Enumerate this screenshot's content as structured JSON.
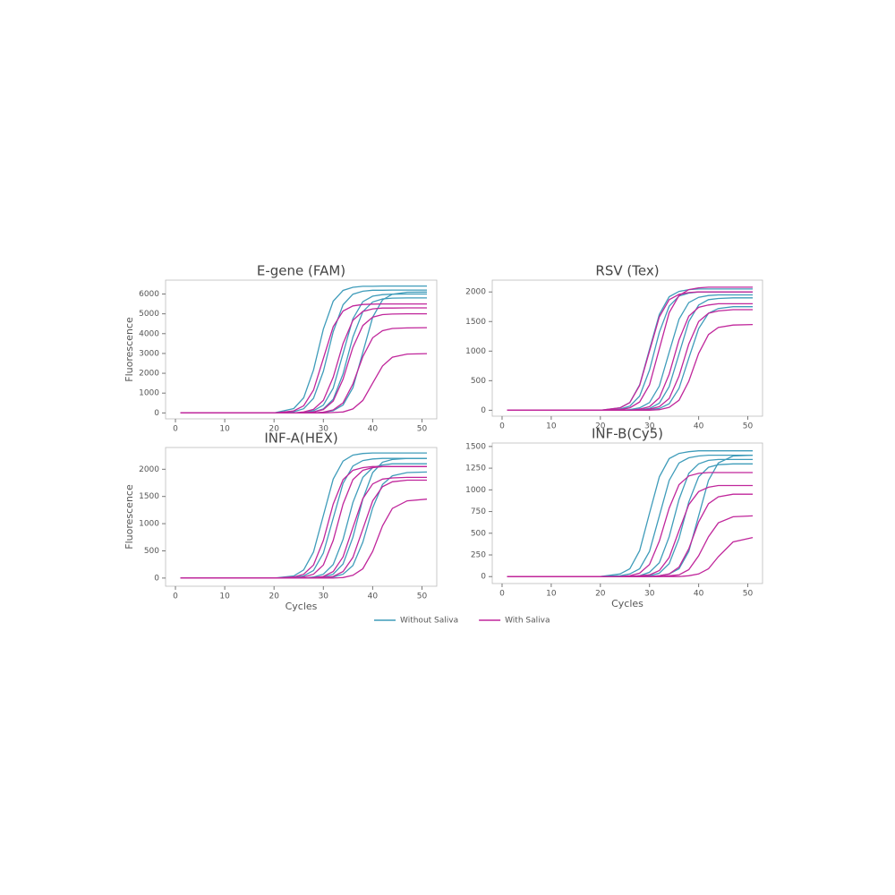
{
  "chart_data": [
    {
      "type": "line",
      "title": "E-gene (FAM)",
      "ylabel": "Fluorescence",
      "x": [
        1,
        10,
        20,
        24,
        26,
        28,
        30,
        32,
        34,
        36,
        38,
        40,
        42,
        44,
        47,
        51
      ],
      "xlim": [
        -2,
        53
      ],
      "xticks": [
        0,
        10,
        20,
        30,
        40,
        50
      ],
      "ylim": [
        -300,
        6700
      ],
      "yticks": [
        0,
        1000,
        2000,
        3000,
        4000,
        5000,
        6000
      ],
      "series": [
        {
          "name": "Without Saliva",
          "color": "#3f9cba",
          "values": [
            0,
            0,
            0,
            220,
            760,
            2170,
            4230,
            5640,
            6180,
            6340,
            6390,
            6390,
            6400,
            6400,
            6400,
            6400
          ]
        },
        {
          "name": "Without Saliva",
          "color": "#3f9cba",
          "values": [
            0,
            0,
            0,
            60,
            210,
            740,
            2100,
            4100,
            5460,
            5990,
            6140,
            6190,
            6190,
            6200,
            6200,
            6200
          ]
        },
        {
          "name": "Without Saliva",
          "color": "#3f9cba",
          "values": [
            0,
            0,
            0,
            0,
            30,
            110,
            390,
            1250,
            3000,
            4750,
            5610,
            5890,
            5970,
            5990,
            6000,
            6000
          ]
        },
        {
          "name": "Without Saliva",
          "color": "#3f9cba",
          "values": [
            0,
            0,
            0,
            0,
            0,
            50,
            200,
            690,
            1970,
            3830,
            5110,
            5600,
            5750,
            5790,
            5800,
            5800
          ]
        },
        {
          "name": "Without Saliva",
          "color": "#3f9cba",
          "values": [
            0,
            0,
            0,
            0,
            0,
            0,
            30,
            110,
            400,
            1270,
            3050,
            4830,
            5700,
            5990,
            6090,
            6100
          ]
        },
        {
          "name": "With Saliva",
          "color": "#c0269b",
          "values": [
            0,
            0,
            0,
            100,
            360,
            1150,
            2750,
            4350,
            5140,
            5400,
            5470,
            5490,
            5500,
            5500,
            5500,
            5500
          ]
        },
        {
          "name": "With Saliva",
          "color": "#c0269b",
          "values": [
            0,
            0,
            0,
            0,
            50,
            180,
            630,
            1800,
            3500,
            4670,
            5120,
            5250,
            5290,
            5290,
            5300,
            5300
          ]
        },
        {
          "name": "With Saliva",
          "color": "#c0269b",
          "values": [
            0,
            0,
            0,
            0,
            0,
            50,
            170,
            600,
            1700,
            3310,
            4410,
            4830,
            4960,
            4990,
            5000,
            5000
          ]
        },
        {
          "name": "With Saliva",
          "color": "#c0269b",
          "values": [
            0,
            0,
            0,
            0,
            0,
            0,
            40,
            150,
            510,
            1460,
            2840,
            3790,
            4150,
            4260,
            4290,
            4300
          ]
        },
        {
          "name": "With Saliva",
          "color": "#c0269b",
          "values": [
            0,
            0,
            0,
            0,
            0,
            0,
            0,
            20,
            50,
            200,
            630,
            1500,
            2370,
            2810,
            2970,
            2990
          ]
        }
      ]
    },
    {
      "type": "line",
      "title": "RSV (Tex)",
      "x": [
        1,
        10,
        20,
        24,
        26,
        28,
        30,
        32,
        34,
        36,
        38,
        40,
        42,
        44,
        47,
        51
      ],
      "xlim": [
        -2,
        53
      ],
      "xticks": [
        0,
        10,
        20,
        30,
        40,
        50
      ],
      "ylim": [
        -100,
        2200
      ],
      "yticks": [
        0,
        500,
        1000,
        1500,
        2000
      ],
      "series": [
        {
          "name": "Without Saliva",
          "color": "#3f9cba",
          "values": [
            0,
            0,
            0,
            40,
            130,
            430,
            1030,
            1620,
            1920,
            2010,
            2040,
            2050,
            2050,
            2050,
            2050,
            2050
          ]
        },
        {
          "name": "Without Saliva",
          "color": "#3f9cba",
          "values": [
            0,
            0,
            0,
            20,
            70,
            240,
            680,
            1320,
            1760,
            1930,
            1980,
            2000,
            2000,
            2000,
            2000,
            2000
          ]
        },
        {
          "name": "Without Saliva",
          "color": "#3f9cba",
          "values": [
            0,
            0,
            0,
            0,
            10,
            40,
            130,
            410,
            980,
            1540,
            1820,
            1910,
            1940,
            1950,
            1950,
            1950
          ]
        },
        {
          "name": "Without Saliva",
          "color": "#3f9cba",
          "values": [
            0,
            0,
            0,
            0,
            0,
            10,
            30,
            120,
            400,
            950,
            1500,
            1780,
            1870,
            1890,
            1900,
            1900
          ]
        },
        {
          "name": "Without Saliva",
          "color": "#3f9cba",
          "values": [
            0,
            0,
            0,
            0,
            0,
            0,
            10,
            30,
            110,
            370,
            880,
            1380,
            1640,
            1720,
            1750,
            1750
          ]
        },
        {
          "name": "With Saliva",
          "color": "#c0269b",
          "values": [
            0,
            0,
            0,
            40,
            130,
            420,
            1000,
            1580,
            1870,
            1960,
            1990,
            2000,
            2000,
            2000,
            2000,
            2000
          ]
        },
        {
          "name": "With Saliva",
          "color": "#c0269b",
          "values": [
            0,
            0,
            0,
            10,
            40,
            140,
            430,
            1040,
            1650,
            1940,
            2040,
            2070,
            2080,
            2080,
            2080,
            2080
          ]
        },
        {
          "name": "With Saliva",
          "color": "#c0269b",
          "values": [
            0,
            0,
            0,
            0,
            0,
            20,
            60,
            210,
            610,
            1190,
            1590,
            1740,
            1780,
            1800,
            1800,
            1800
          ]
        },
        {
          "name": "With Saliva",
          "color": "#c0269b",
          "values": [
            0,
            0,
            0,
            0,
            0,
            0,
            20,
            60,
            200,
            580,
            1120,
            1500,
            1640,
            1680,
            1700,
            1700
          ]
        },
        {
          "name": "With Saliva",
          "color": "#c0269b",
          "values": [
            0,
            0,
            0,
            0,
            0,
            0,
            0,
            10,
            50,
            170,
            490,
            960,
            1280,
            1400,
            1440,
            1450
          ]
        }
      ]
    },
    {
      "type": "line",
      "title": "INF-A(HEX)",
      "ylabel": "Fluorescence",
      "xlabel": "Cycles",
      "x": [
        1,
        10,
        20,
        24,
        26,
        28,
        30,
        32,
        34,
        36,
        38,
        40,
        42,
        44,
        47,
        51
      ],
      "xlim": [
        -2,
        53
      ],
      "xticks": [
        0,
        10,
        20,
        30,
        40,
        50
      ],
      "ylim": [
        -150,
        2400
      ],
      "yticks": [
        0,
        500,
        1000,
        1500,
        2000
      ],
      "series": [
        {
          "name": "Without Saliva",
          "color": "#3f9cba",
          "values": [
            0,
            0,
            0,
            40,
            150,
            480,
            1150,
            1820,
            2150,
            2260,
            2290,
            2300,
            2300,
            2300,
            2300,
            2300
          ]
        },
        {
          "name": "Without Saliva",
          "color": "#3f9cba",
          "values": [
            0,
            0,
            0,
            10,
            40,
            140,
            460,
            1100,
            1740,
            2060,
            2160,
            2190,
            2200,
            2200,
            2200,
            2200
          ]
        },
        {
          "name": "Without Saliva",
          "color": "#3f9cba",
          "values": [
            0,
            0,
            0,
            0,
            0,
            20,
            70,
            250,
            710,
            1390,
            1850,
            2030,
            2080,
            2100,
            2100,
            2100
          ]
        },
        {
          "name": "Without Saliva",
          "color": "#3f9cba",
          "values": [
            0,
            0,
            0,
            0,
            0,
            0,
            20,
            70,
            260,
            750,
            1450,
            1940,
            2130,
            2180,
            2200,
            2200
          ]
        },
        {
          "name": "Without Saliva",
          "color": "#3f9cba",
          "values": [
            0,
            0,
            0,
            0,
            0,
            0,
            0,
            20,
            70,
            230,
            660,
            1290,
            1720,
            1880,
            1940,
            1950
          ]
        },
        {
          "name": "With Saliva",
          "color": "#c0269b",
          "values": [
            0,
            0,
            0,
            20,
            70,
            240,
            690,
            1360,
            1810,
            1980,
            2030,
            2050,
            2050,
            2050,
            2050,
            2050
          ]
        },
        {
          "name": "With Saliva",
          "color": "#c0269b",
          "values": [
            0,
            0,
            0,
            0,
            20,
            70,
            240,
            690,
            1360,
            1810,
            1980,
            2030,
            2050,
            2050,
            2050,
            2050
          ]
        },
        {
          "name": "With Saliva",
          "color": "#c0269b",
          "values": [
            0,
            0,
            0,
            0,
            0,
            10,
            30,
            120,
            390,
            930,
            1460,
            1730,
            1820,
            1840,
            1850,
            1850
          ]
        },
        {
          "name": "With Saliva",
          "color": "#c0269b",
          "values": [
            0,
            0,
            0,
            0,
            0,
            0,
            10,
            30,
            120,
            380,
            900,
            1420,
            1680,
            1770,
            1800,
            1800
          ]
        },
        {
          "name": "With Saliva",
          "color": "#c0269b",
          "values": [
            0,
            0,
            0,
            0,
            0,
            0,
            0,
            0,
            10,
            50,
            170,
            490,
            960,
            1280,
            1420,
            1450
          ]
        }
      ]
    },
    {
      "type": "line",
      "title": "INF-B(Cy5)",
      "xlabel": "Cycles",
      "x": [
        1,
        10,
        20,
        24,
        26,
        28,
        30,
        32,
        34,
        36,
        38,
        40,
        42,
        44,
        47,
        51
      ],
      "xlim": [
        -2,
        53
      ],
      "xticks": [
        0,
        10,
        20,
        30,
        40,
        50
      ],
      "ylim": [
        -80,
        1540
      ],
      "yticks": [
        0,
        250,
        500,
        750,
        1000,
        1250,
        1500
      ],
      "series": [
        {
          "name": "Without Saliva",
          "color": "#3f9cba",
          "values": [
            0,
            0,
            0,
            30,
            90,
            300,
            730,
            1150,
            1360,
            1420,
            1440,
            1450,
            1450,
            1450,
            1450,
            1450
          ]
        },
        {
          "name": "Without Saliva",
          "color": "#3f9cba",
          "values": [
            0,
            0,
            0,
            10,
            30,
            90,
            290,
            700,
            1110,
            1310,
            1370,
            1390,
            1400,
            1400,
            1400,
            1400
          ]
        },
        {
          "name": "Without Saliva",
          "color": "#3f9cba",
          "values": [
            0,
            0,
            0,
            0,
            0,
            10,
            50,
            160,
            460,
            890,
            1190,
            1300,
            1340,
            1350,
            1350,
            1350
          ]
        },
        {
          "name": "Without Saliva",
          "color": "#3f9cba",
          "values": [
            0,
            0,
            0,
            0,
            0,
            0,
            10,
            40,
            150,
            440,
            860,
            1150,
            1260,
            1290,
            1300,
            1300
          ]
        },
        {
          "name": "Without Saliva",
          "color": "#3f9cba",
          "values": [
            0,
            0,
            0,
            0,
            0,
            0,
            0,
            10,
            30,
            90,
            290,
            700,
            1110,
            1310,
            1390,
            1400
          ]
        },
        {
          "name": "With Saliva",
          "color": "#c0269b",
          "values": [
            0,
            0,
            0,
            0,
            10,
            40,
            140,
            410,
            790,
            1060,
            1160,
            1190,
            1200,
            1200,
            1200,
            1200
          ]
        },
        {
          "name": "With Saliva",
          "color": "#c0269b",
          "values": [
            0,
            0,
            0,
            0,
            0,
            10,
            20,
            70,
            220,
            530,
            830,
            980,
            1030,
            1050,
            1050,
            1050
          ]
        },
        {
          "name": "With Saliva",
          "color": "#c0269b",
          "values": [
            0,
            0,
            0,
            0,
            0,
            0,
            0,
            10,
            30,
            110,
            320,
            630,
            840,
            920,
            950,
            950
          ]
        },
        {
          "name": "With Saliva",
          "color": "#c0269b",
          "values": [
            0,
            0,
            0,
            0,
            0,
            0,
            0,
            0,
            10,
            20,
            80,
            240,
            460,
            620,
            690,
            700
          ]
        },
        {
          "name": "With Saliva",
          "color": "#c0269b",
          "values": [
            0,
            0,
            0,
            0,
            0,
            0,
            0,
            0,
            0,
            0,
            10,
            30,
            90,
            230,
            400,
            450
          ]
        }
      ]
    }
  ]
}
